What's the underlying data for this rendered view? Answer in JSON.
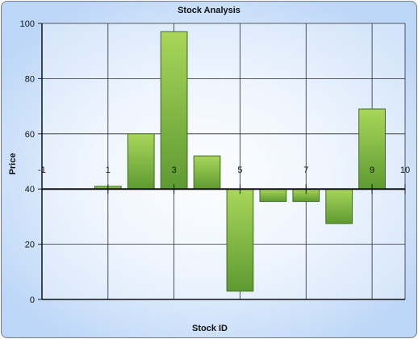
{
  "chart_data": {
    "type": "bar",
    "title": "Stock Analysis",
    "xlabel": "Stock ID",
    "ylabel": "Price",
    "xlim": [
      -1,
      10
    ],
    "ylim": [
      0,
      100
    ],
    "baseline": 40,
    "x_ticks": [
      -1,
      1,
      3,
      5,
      7,
      9,
      10
    ],
    "x_tick_labels": [
      "-1",
      "1",
      "3",
      "5",
      "7",
      "9",
      "10"
    ],
    "x_grid": [
      -1,
      1,
      3,
      5,
      7,
      9,
      10
    ],
    "y_ticks": [
      0,
      20,
      40,
      60,
      80,
      100
    ],
    "y_tick_labels": [
      "0",
      "20",
      "40",
      "60",
      "80",
      "100"
    ],
    "grid": true,
    "legend": "none",
    "bar_color_top": "#a9d65a",
    "bar_color_bottom": "#5e9a32",
    "bar_border": "#3f6b22",
    "series": [
      {
        "x": [
          1,
          2,
          3,
          4,
          5,
          6,
          7,
          8,
          9
        ],
        "values": [
          41,
          60,
          97,
          52,
          3,
          35.5,
          35.5,
          27.5,
          69
        ]
      }
    ]
  }
}
